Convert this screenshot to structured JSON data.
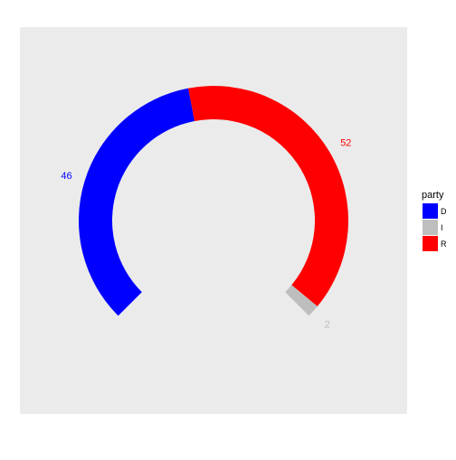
{
  "chart_data": {
    "type": "pie",
    "subtype": "parliament-arc",
    "title": "",
    "legend": {
      "title": "party",
      "placement": "right"
    },
    "series": [
      {
        "name": "D",
        "value": 46,
        "label": "46",
        "color": "#0000FF"
      },
      {
        "name": "I",
        "value": 2,
        "label": "2",
        "color": "#BEBEBE"
      },
      {
        "name": "R",
        "value": 52,
        "label": "52",
        "color": "#FF0000"
      }
    ],
    "segment_order": [
      "D",
      "R",
      "I"
    ],
    "arc_start_deg": 225,
    "arc_sweep_deg": 270,
    "panel_background": "#EBEBEB",
    "grid": false
  }
}
